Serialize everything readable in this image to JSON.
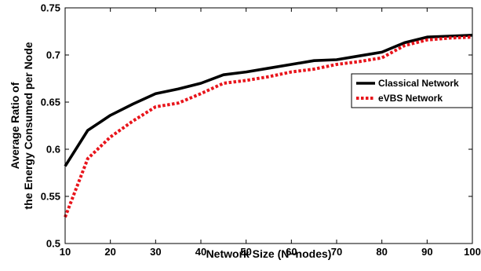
{
  "chart_data": {
    "type": "line",
    "title": "",
    "xlabel": "Network Size (N−nodes)",
    "ylabel_lines": [
      "Average Ratio of",
      "the Energy Consumed per Node"
    ],
    "xlim": [
      10,
      100
    ],
    "ylim": [
      0.5,
      0.75
    ],
    "xticks": [
      10,
      20,
      30,
      40,
      50,
      60,
      70,
      80,
      90,
      100
    ],
    "yticks": [
      0.5,
      0.55,
      0.6,
      0.65,
      0.7,
      0.75
    ],
    "ytick_labels": [
      "0.5",
      "0.55",
      "0.6",
      "0.65",
      "0.7",
      "0.75"
    ],
    "grid": false,
    "legend_position": "right",
    "x": [
      10,
      15,
      20,
      25,
      30,
      35,
      40,
      45,
      50,
      55,
      60,
      65,
      70,
      75,
      80,
      85,
      90,
      95,
      100
    ],
    "series": [
      {
        "name": "Classical Network",
        "color": "#000000",
        "style": "solid",
        "values": [
          0.582,
          0.62,
          0.636,
          0.648,
          0.659,
          0.664,
          0.67,
          0.679,
          0.682,
          0.686,
          0.69,
          0.694,
          0.695,
          0.699,
          0.703,
          0.713,
          0.719,
          0.72,
          0.721
        ]
      },
      {
        "name": "eVBS Network",
        "color": "#e8141b",
        "style": "dotted",
        "values": [
          0.528,
          0.59,
          0.613,
          0.63,
          0.645,
          0.649,
          0.659,
          0.67,
          0.673,
          0.677,
          0.682,
          0.685,
          0.69,
          0.693,
          0.697,
          0.71,
          0.716,
          0.718,
          0.719
        ]
      }
    ]
  }
}
